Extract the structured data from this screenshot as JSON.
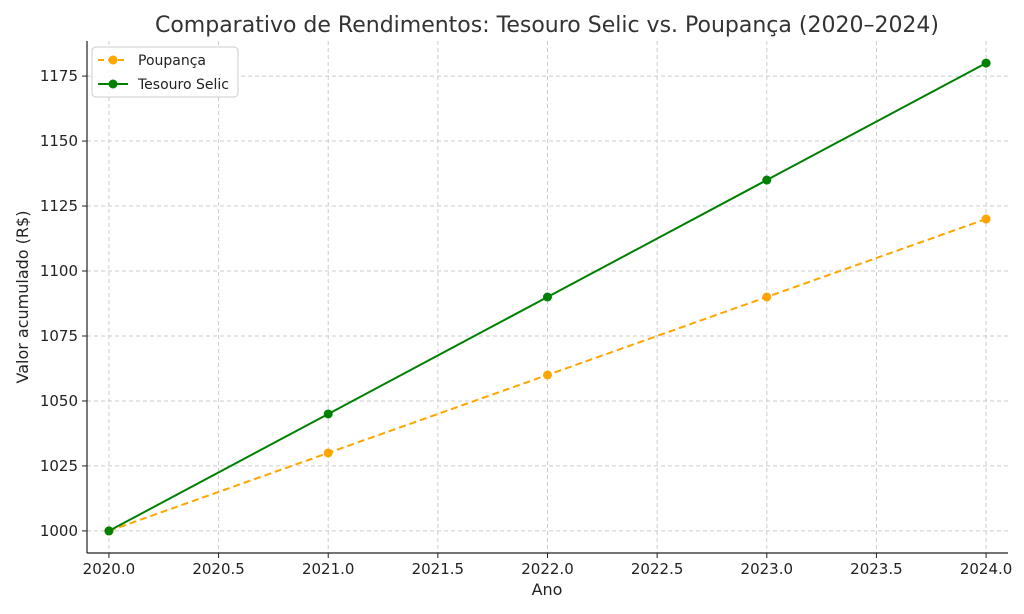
{
  "chart_data": {
    "type": "line",
    "title": "Comparativo de Rendimentos: Tesouro Selic vs. Poupança (2020–2024)",
    "xlabel": "Ano",
    "ylabel": "Valor acumulado (R$)",
    "x": [
      2020,
      2021,
      2022,
      2023,
      2024
    ],
    "xlim": [
      2019.9,
      2024.1
    ],
    "ylim": [
      991.5,
      1188.5
    ],
    "xticks": [
      2020.0,
      2020.5,
      2021.0,
      2021.5,
      2022.0,
      2022.5,
      2023.0,
      2023.5,
      2024.0
    ],
    "xtick_labels": [
      "2020.0",
      "2020.5",
      "2021.0",
      "2021.5",
      "2022.0",
      "2022.5",
      "2023.0",
      "2023.5",
      "2024.0"
    ],
    "yticks": [
      1000,
      1025,
      1050,
      1075,
      1100,
      1125,
      1150,
      1175
    ],
    "ytick_labels": [
      "1000",
      "1025",
      "1050",
      "1075",
      "1100",
      "1125",
      "1150",
      "1175"
    ],
    "grid": true,
    "legend_position": "top-left",
    "series": [
      {
        "name": "Poupança",
        "values": [
          1000,
          1030,
          1060,
          1090,
          1120
        ],
        "color": "#FFA500",
        "line_style": "dashed",
        "marker": "circle"
      },
      {
        "name": "Tesouro Selic",
        "values": [
          1000,
          1045,
          1090,
          1135,
          1180
        ],
        "color": "#008000",
        "line_style": "solid",
        "marker": "circle"
      }
    ]
  }
}
